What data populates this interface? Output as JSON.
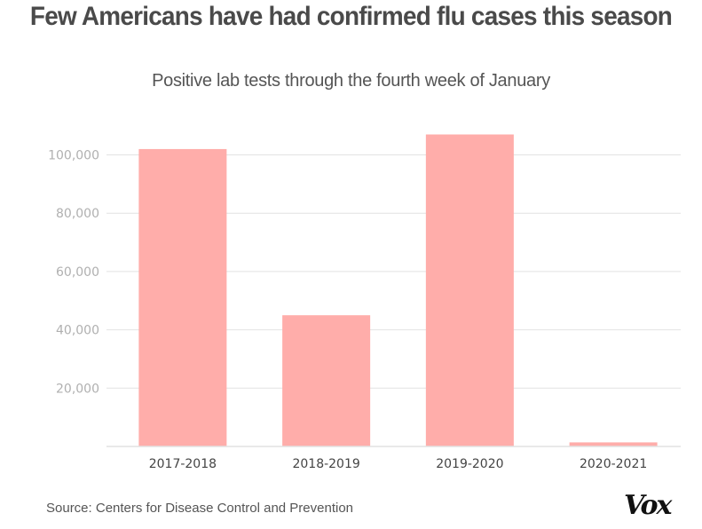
{
  "header": {
    "title": "Few Americans have had confirmed flu cases this season",
    "subtitle": "Positive lab tests through the fourth week of January"
  },
  "footer": {
    "source": "Source: Centers for Disease Control and Prevention",
    "logo": "Vox"
  },
  "colors": {
    "bar": "#ffadaa",
    "grid": "#e2e2e2",
    "title": "#4a4a4a"
  },
  "chart_data": {
    "type": "bar",
    "title": "Few Americans have had confirmed flu cases this season",
    "subtitle": "Positive lab tests through the fourth week of January",
    "xlabel": "",
    "ylabel": "",
    "categories": [
      "2017-2018",
      "2018-2019",
      "2019-2020",
      "2020-2021"
    ],
    "values": [
      102000,
      45000,
      107000,
      1400
    ],
    "ylim": [
      0,
      110000
    ],
    "yticks": [
      20000,
      40000,
      60000,
      80000,
      100000
    ],
    "ytick_labels": [
      "20,000",
      "40,000",
      "60,000",
      "80,000",
      "100,000"
    ],
    "grid": true,
    "legend": "none",
    "source": "Source: Centers for Disease Control and Prevention"
  }
}
